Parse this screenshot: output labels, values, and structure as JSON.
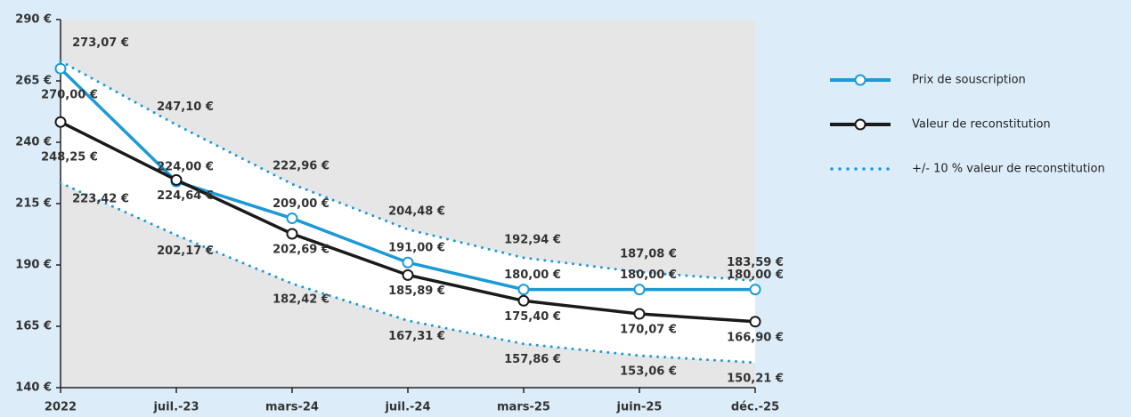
{
  "chart_data": {
    "type": "line",
    "categories": [
      "2022",
      "juil.-23",
      "mars-24",
      "juil.-24",
      "mars-25",
      "juin-25",
      "déc.-25"
    ],
    "series": [
      {
        "name": "Prix de souscription",
        "color": "#1b9ad6",
        "values": [
          270.0,
          224.0,
          209.0,
          191.0,
          180.0,
          180.0,
          180.0
        ],
        "value_labels": [
          "270,00 €",
          "224,00 €",
          "209,00 €",
          "191,00 €",
          "180,00 €",
          "180,00 €",
          "180,00 €"
        ]
      },
      {
        "name": "Valeur de reconstitution",
        "color": "#1a1a1a",
        "values": [
          248.25,
          224.64,
          202.69,
          185.89,
          175.4,
          170.07,
          166.9
        ],
        "value_labels": [
          "248,25 €",
          "224,64 €",
          "202,69 €",
          "185,89 €",
          "175,40 €",
          "170,07 €",
          "166,90 €"
        ]
      }
    ],
    "band": {
      "name": "+/- 10 % valeur de reconstitution",
      "color": "#1b9ad6",
      "upper": [
        273.07,
        247.1,
        222.96,
        204.48,
        192.94,
        187.08,
        183.59
      ],
      "upper_labels": [
        "273,07 €",
        "247,10 €",
        "222,96 €",
        "204,48 €",
        "192,94 €",
        "187,08 €",
        "183,59 €"
      ],
      "lower": [
        223.42,
        202.17,
        182.42,
        167.31,
        157.86,
        153.06,
        150.21
      ],
      "lower_labels": [
        "223,42 €",
        "202,17 €",
        "182,42 €",
        "167,31 €",
        "157,86 €",
        "153,06 €",
        "150,21 €"
      ]
    },
    "ylim": [
      140,
      290
    ],
    "yticks": [
      {
        "value": 140,
        "label": "140 €"
      },
      {
        "value": 165,
        "label": "165 €"
      },
      {
        "value": 190,
        "label": "190 €"
      },
      {
        "value": 215,
        "label": "215 €"
      },
      {
        "value": 240,
        "label": "240 €"
      },
      {
        "value": 265,
        "label": "265 €"
      },
      {
        "value": 290,
        "label": "290 €"
      }
    ]
  }
}
